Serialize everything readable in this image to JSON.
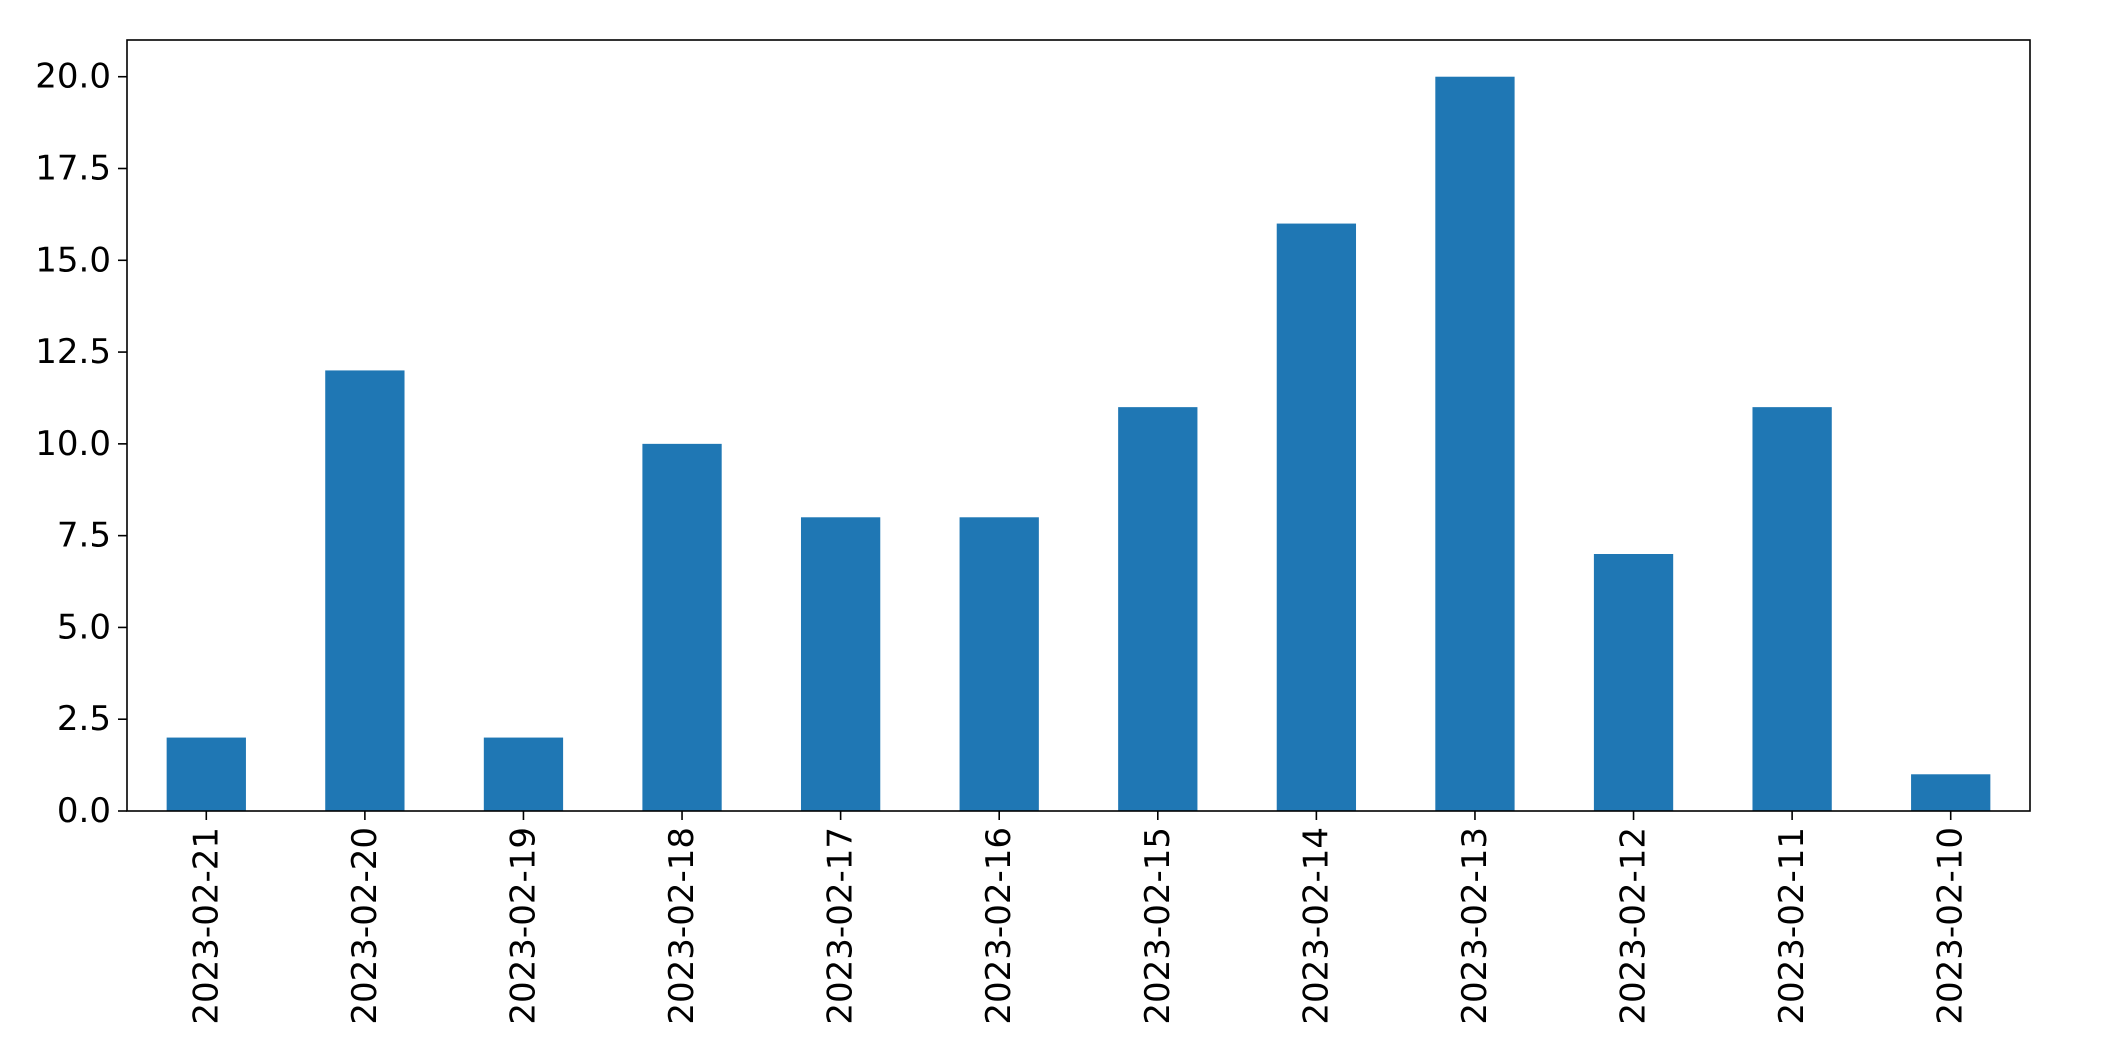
{
  "chart_data": {
    "type": "bar",
    "title": "",
    "xlabel": "",
    "ylabel": "",
    "categories": [
      "2023-02-21",
      "2023-02-20",
      "2023-02-19",
      "2023-02-18",
      "2023-02-17",
      "2023-02-16",
      "2023-02-15",
      "2023-02-14",
      "2023-02-13",
      "2023-02-12",
      "2023-02-11",
      "2023-02-10"
    ],
    "series": [
      {
        "values": [
          2,
          12,
          2,
          10,
          8,
          8,
          11,
          16,
          20,
          7,
          11,
          1
        ],
        "color": "#1f77b4"
      }
    ],
    "ylim": [
      0,
      21
    ],
    "yticks": [
      "0.0",
      "2.5",
      "5.0",
      "7.5",
      "10.0",
      "12.5",
      "15.0",
      "17.5",
      "20.0"
    ],
    "ytick_values": [
      0,
      2.5,
      5,
      7.5,
      10,
      12.5,
      15,
      17.5,
      20
    ],
    "x_tick_rotation": "vertical",
    "grid": false,
    "legend": "none"
  }
}
